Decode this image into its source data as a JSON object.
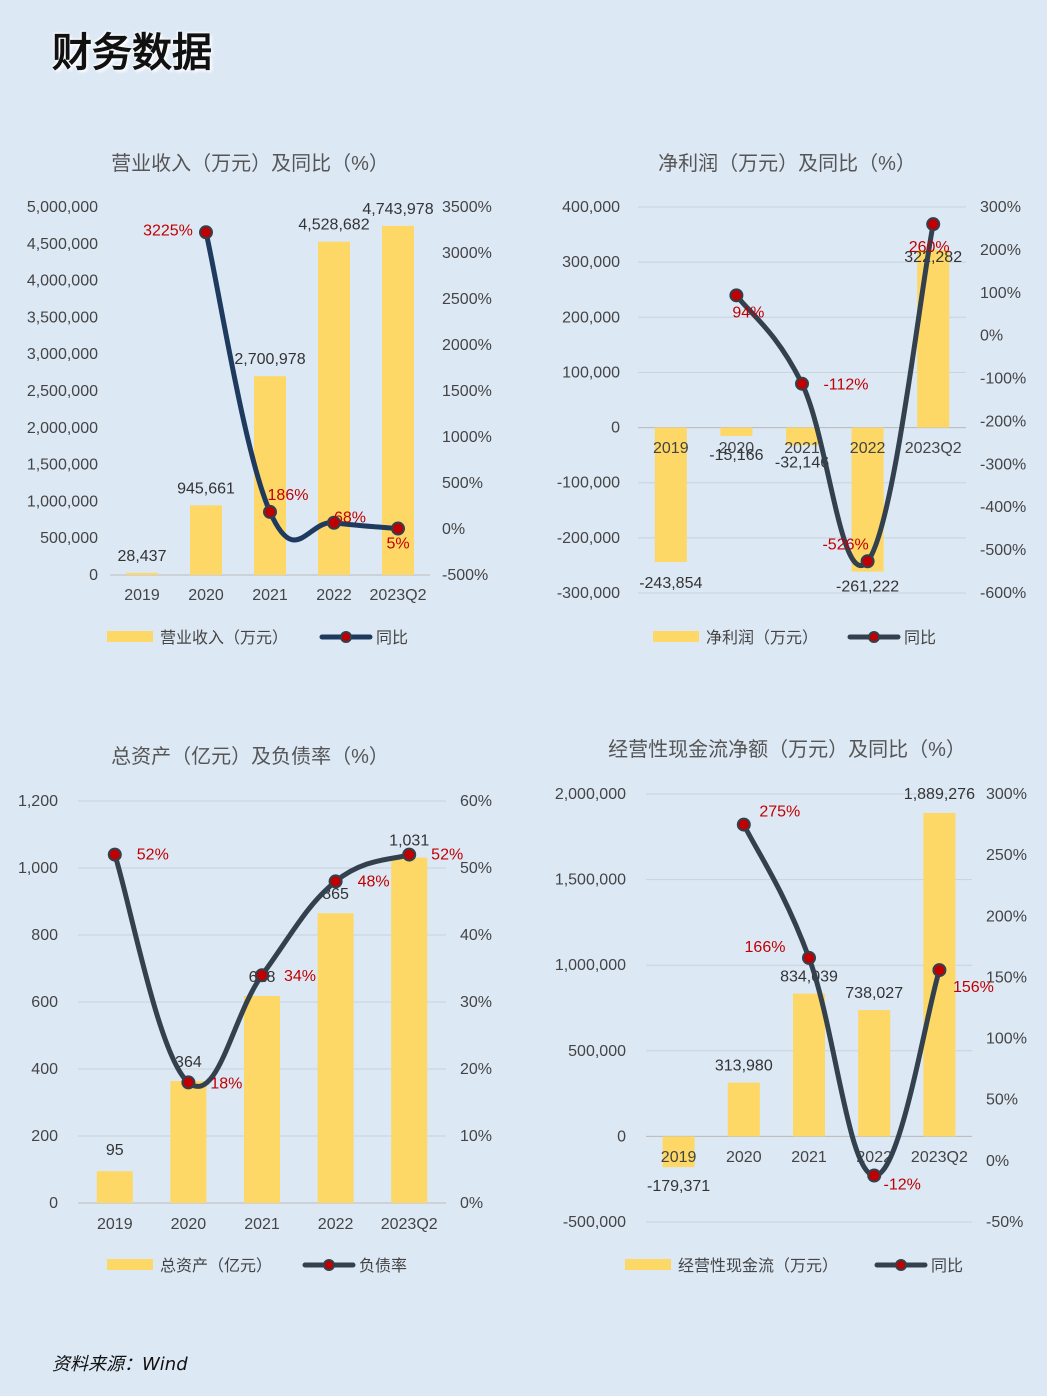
{
  "page": {
    "title": "财务数据",
    "source": "资料来源：Wind"
  },
  "colors": {
    "bar": "#fdd866",
    "line_a": "#1e3a5f",
    "line_b": "#33404e",
    "marker": "#c00000",
    "label_red": "#c00000",
    "axis_text": "#444444",
    "grid": "#c9d2dc"
  },
  "chart_data": [
    {
      "id": "revenue",
      "type": "bar+line",
      "title": "营业收入（万元）及同比（%）",
      "categories": [
        "2019",
        "2020",
        "2021",
        "2022",
        "2023Q2"
      ],
      "bar_series": {
        "name": "营业收入（万元）",
        "values": [
          28437,
          945661,
          2700978,
          4528682,
          4743978
        ],
        "labels": [
          "28,437",
          "945,661",
          "2,700,978",
          "4,528,682",
          "4,743,978"
        ]
      },
      "line_series": {
        "name": "同比",
        "values": [
          null,
          3225,
          186,
          68,
          5
        ],
        "labels": [
          "",
          "3225%",
          "186%",
          "68%",
          "5%"
        ]
      },
      "y_left": {
        "min": 0,
        "max": 5000000,
        "step": 500000,
        "ticks": [
          "0",
          "500,000",
          "1,000,000",
          "1,500,000",
          "2,000,000",
          "2,500,000",
          "3,000,000",
          "3,500,000",
          "4,000,000",
          "4,500,000",
          "5,000,000"
        ]
      },
      "y_right": {
        "min": -500,
        "max": 3500,
        "step": 500,
        "ticks": [
          "-500%",
          "0%",
          "500%",
          "1000%",
          "1500%",
          "2000%",
          "2500%",
          "3000%",
          "3500%"
        ]
      },
      "grid": false
    },
    {
      "id": "netprofit",
      "type": "bar+line",
      "title": "净利润（万元）及同比（%）",
      "categories": [
        "2019",
        "2020",
        "2021",
        "2022",
        "2023Q2"
      ],
      "bar_series": {
        "name": "净利润（万元）",
        "values": [
          -243854,
          -15166,
          -32146,
          -261222,
          322282
        ],
        "labels": [
          "-243,854",
          "-15,166",
          "-32,146",
          "-261,222",
          "322,282"
        ]
      },
      "line_series": {
        "name": "同比",
        "values": [
          null,
          94,
          -112,
          -526,
          260
        ],
        "labels": [
          "",
          "94%",
          "-112%",
          "-526%",
          "260%"
        ]
      },
      "y_left": {
        "min": -300000,
        "max": 400000,
        "step": 100000,
        "ticks": [
          "-300,000",
          "-200,000",
          "-100,000",
          "0",
          "100,000",
          "200,000",
          "300,000",
          "400,000"
        ]
      },
      "y_right": {
        "min": -600,
        "max": 300,
        "step": 100,
        "ticks": [
          "-600%",
          "-500%",
          "-400%",
          "-300%",
          "-200%",
          "-100%",
          "0%",
          "100%",
          "200%",
          "300%"
        ]
      },
      "grid": true
    },
    {
      "id": "assets",
      "type": "bar+line",
      "title": "总资产（亿元）及负债率（%）",
      "categories": [
        "2019",
        "2020",
        "2021",
        "2022",
        "2023Q2"
      ],
      "bar_series": {
        "name": "总资产（亿元）",
        "values": [
          95,
          364,
          618,
          865,
          1031
        ],
        "labels": [
          "95",
          "364",
          "618",
          "865",
          "1,031"
        ]
      },
      "line_series": {
        "name": "负债率",
        "values": [
          52,
          18,
          34,
          48,
          52
        ],
        "labels": [
          "52%",
          "18%",
          "34%",
          "48%",
          "52%"
        ]
      },
      "y_left": {
        "min": 0,
        "max": 1200,
        "step": 200,
        "ticks": [
          "0",
          "200",
          "400",
          "600",
          "800",
          "1,000",
          "1,200"
        ]
      },
      "y_right": {
        "min": 0,
        "max": 60,
        "step": 10,
        "ticks": [
          "0%",
          "10%",
          "20%",
          "30%",
          "40%",
          "50%",
          "60%"
        ]
      },
      "grid": true
    },
    {
      "id": "cashflow",
      "type": "bar+line",
      "title": "经营性现金流净额（万元）及同比（%）",
      "categories": [
        "2019",
        "2020",
        "2021",
        "2022",
        "2023Q2"
      ],
      "bar_series": {
        "name": "经营性现金流（万元）",
        "values": [
          -179371,
          313980,
          834039,
          738027,
          1889276
        ],
        "labels": [
          "-179,371",
          "313,980",
          "834,039",
          "738,027",
          "1,889,276"
        ]
      },
      "line_series": {
        "name": "同比",
        "values": [
          null,
          275,
          166,
          -12,
          156
        ],
        "labels": [
          "",
          "275%",
          "166%",
          "-12%",
          "156%"
        ]
      },
      "y_left": {
        "min": -500000,
        "max": 2000000,
        "step": 500000,
        "ticks": [
          "-500,000",
          "0",
          "500,000",
          "1,000,000",
          "1,500,000",
          "2,000,000"
        ]
      },
      "y_right": {
        "min": -50,
        "max": 300,
        "step": 50,
        "ticks": [
          "-50%",
          "0%",
          "50%",
          "100%",
          "150%",
          "200%",
          "250%",
          "300%"
        ]
      },
      "grid": true
    }
  ]
}
